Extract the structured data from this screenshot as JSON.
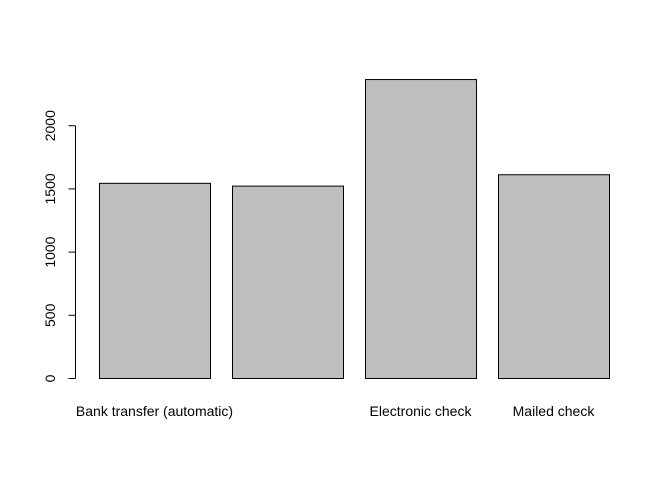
{
  "chart_data": {
    "type": "bar",
    "categories": [
      "Bank transfer (automatic)",
      "",
      "Electronic check",
      "Mailed check"
    ],
    "values": [
      1544,
      1522,
      2365,
      1612
    ],
    "ylim": [
      0,
      2500
    ],
    "yticks": [
      0,
      500,
      1000,
      1500,
      2000
    ],
    "title": "",
    "xlabel": "",
    "ylabel": "",
    "bar_color": "#bebebe",
    "grid": false
  }
}
